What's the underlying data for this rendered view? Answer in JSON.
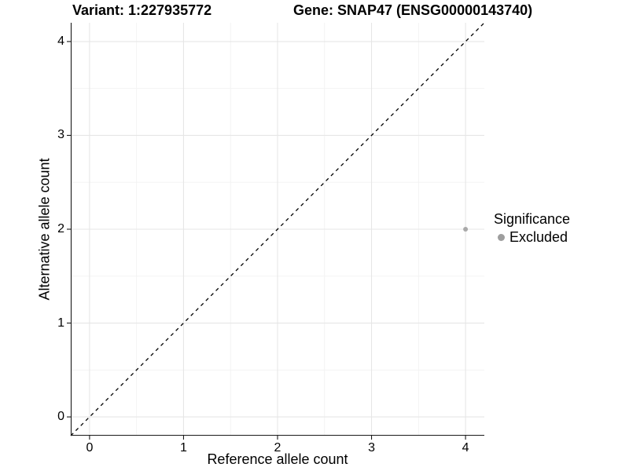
{
  "chart_data": {
    "type": "scatter",
    "title_left": "Variant: 1:227935772",
    "title_right": "Gene: SNAP47 (ENSG00000143740)",
    "xlabel": "Reference allele count",
    "ylabel": "Alternative allele count",
    "xlim": [
      -0.2,
      4.2
    ],
    "ylim": [
      -0.2,
      4.2
    ],
    "xticks": [
      0,
      1,
      2,
      3,
      4
    ],
    "yticks": [
      0,
      1,
      2,
      3,
      4
    ],
    "xticks_minor": [
      0.5,
      1.5,
      2.5,
      3.5
    ],
    "yticks_minor": [
      0.5,
      1.5,
      2.5,
      3.5
    ],
    "grid": "major+minor",
    "identity_line": {
      "kind": "y=x diagonal",
      "style": "dashed",
      "color": "#000000"
    },
    "series": [
      {
        "name": "Excluded",
        "color": "#a9a9a9",
        "points": [
          {
            "x": 4,
            "y": 2
          }
        ]
      }
    ],
    "legend": {
      "position": "right",
      "title": "Significance",
      "entries": [
        {
          "label": "Excluded",
          "color": "#9e9e9e"
        }
      ]
    },
    "colors": {
      "grid_major": "#e6e6e6",
      "grid_minor": "#f2f2f2",
      "axis": "#1a1a1a",
      "background": "#ffffff"
    }
  }
}
